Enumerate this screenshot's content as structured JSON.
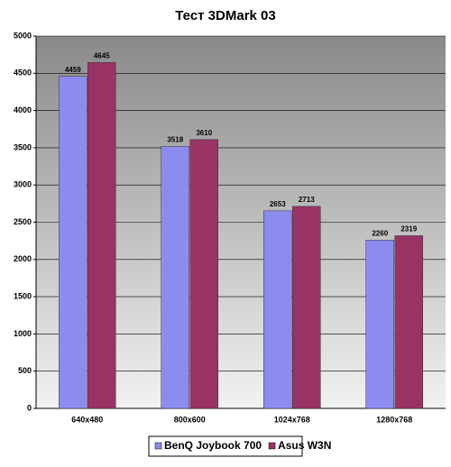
{
  "chart_data": {
    "type": "bar",
    "title": "Тест 3DMark 03",
    "categories": [
      "640x480",
      "800x600",
      "1024x768",
      "1280x768"
    ],
    "series": [
      {
        "name": "BenQ Joybook 700",
        "color": "#8c8cf0",
        "values": [
          4459,
          3518,
          2653,
          2260
        ]
      },
      {
        "name": "Asus W3N",
        "color": "#993366",
        "values": [
          4645,
          3610,
          2713,
          2319
        ]
      }
    ],
    "ylim": [
      0,
      5000
    ],
    "yticks": [
      0,
      500,
      1000,
      1500,
      2000,
      2500,
      3000,
      3500,
      4000,
      4500,
      5000
    ],
    "grid": true,
    "legend": "bottom"
  }
}
